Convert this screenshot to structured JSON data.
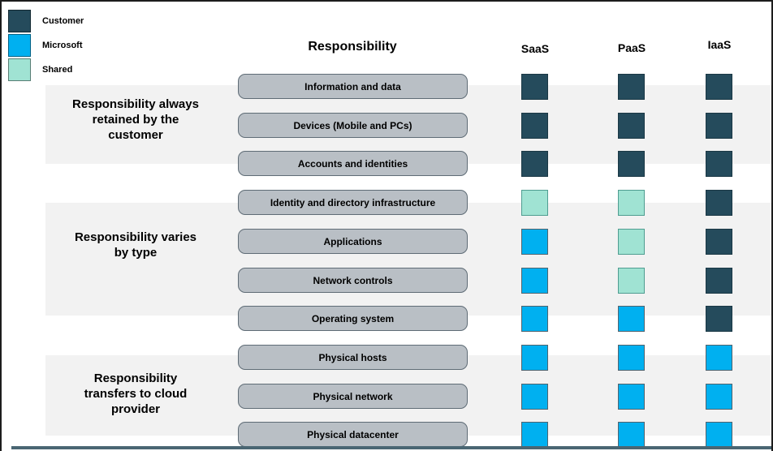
{
  "legend": {
    "items": [
      {
        "key": "customer",
        "label": "Customer"
      },
      {
        "key": "microsoft",
        "label": "Microsoft"
      },
      {
        "key": "shared",
        "label": "Shared"
      }
    ]
  },
  "colors": {
    "customer": "#254b5c",
    "microsoft": "#00b0f0",
    "shared": "#a0e3d3",
    "pill_fill": "#b9bfc5",
    "pill_border": "#5f6c76",
    "band": "#f2f2f2",
    "bottom_bar": "#4a6673"
  },
  "header": {
    "responsibility": "Responsibility",
    "columns": [
      "SaaS",
      "PaaS",
      "IaaS"
    ]
  },
  "groups": [
    {
      "label": "Responsibility always\nretained by the\ncustomer"
    },
    {
      "label": "Responsibility varies\nby type"
    },
    {
      "label": "Responsibility\ntransfers to cloud\nprovider"
    }
  ],
  "rows": [
    {
      "label": "Information and data",
      "owners": [
        "customer",
        "customer",
        "customer"
      ]
    },
    {
      "label": "Devices (Mobile and PCs)",
      "owners": [
        "customer",
        "customer",
        "customer"
      ]
    },
    {
      "label": "Accounts and identities",
      "owners": [
        "customer",
        "customer",
        "customer"
      ]
    },
    {
      "label": "Identity and directory infrastructure",
      "owners": [
        "shared",
        "shared",
        "customer"
      ]
    },
    {
      "label": "Applications",
      "owners": [
        "microsoft",
        "shared",
        "customer"
      ]
    },
    {
      "label": "Network controls",
      "owners": [
        "microsoft",
        "shared",
        "customer"
      ]
    },
    {
      "label": "Operating system",
      "owners": [
        "microsoft",
        "microsoft",
        "customer"
      ]
    },
    {
      "label": "Physical hosts",
      "owners": [
        "microsoft",
        "microsoft",
        "microsoft"
      ]
    },
    {
      "label": "Physical network",
      "owners": [
        "microsoft",
        "microsoft",
        "microsoft"
      ]
    },
    {
      "label": "Physical datacenter",
      "owners": [
        "microsoft",
        "microsoft",
        "microsoft"
      ]
    }
  ]
}
